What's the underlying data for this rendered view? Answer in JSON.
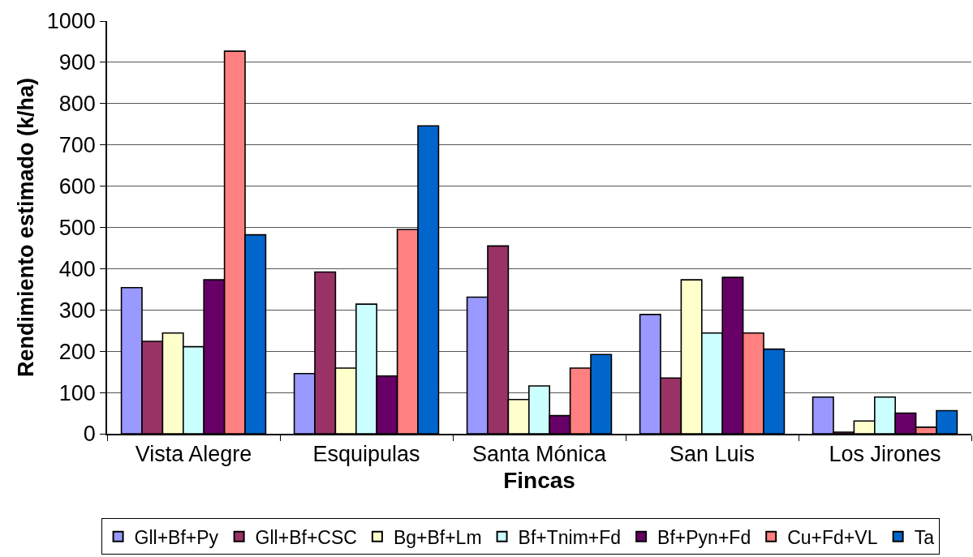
{
  "chart_data": {
    "type": "bar",
    "xlabel": "Fincas",
    "ylabel": "Rendimiento estimado (k/ha)",
    "categories": [
      "Vista Alegre",
      "Esquipulas",
      "Santa Mónica",
      "San Luis",
      "Los Jirones"
    ],
    "series": [
      {
        "name": "Gll+Bf+Py",
        "color": "#9999ff",
        "values": [
          354,
          146,
          331,
          289,
          89
        ]
      },
      {
        "name": "Gll+Bf+CSC",
        "color": "#993366",
        "values": [
          224,
          392,
          455,
          135,
          4
        ]
      },
      {
        "name": "Bg+Bf+Lm",
        "color": "#ffffcc",
        "values": [
          244,
          159,
          83,
          373,
          31
        ]
      },
      {
        "name": "Bf+Tnim+Fd",
        "color": "#ccffff",
        "values": [
          211,
          314,
          116,
          244,
          89
        ]
      },
      {
        "name": "Bf+Pyn+Fd",
        "color": "#660066",
        "values": [
          373,
          140,
          44,
          379,
          50
        ]
      },
      {
        "name": "Cu+Fd+VL",
        "color": "#ff8080",
        "values": [
          927,
          495,
          159,
          244,
          16
        ]
      },
      {
        "name": "Ta",
        "color": "#0066cc",
        "values": [
          482,
          746,
          192,
          205,
          56
        ]
      }
    ],
    "ylim": [
      0,
      1000
    ],
    "yticks": [
      0,
      100,
      200,
      300,
      400,
      500,
      600,
      700,
      800,
      900,
      1000
    ],
    "grid": "y",
    "legend": "bottom"
  }
}
